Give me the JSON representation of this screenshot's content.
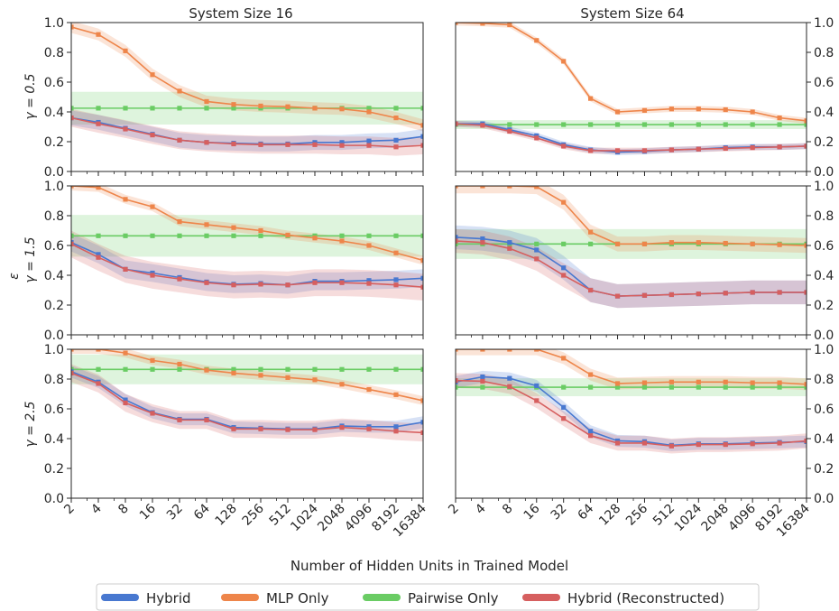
{
  "colors": {
    "Hybrid": "#4878d0",
    "MLP Only": "#ee854a",
    "Pairwise Only": "#6acc64",
    "Hybrid (Reconstructed)": "#d65f5f"
  },
  "figure": {
    "xlabel": "Number of Hidden Units in Trained Model",
    "ylabel_shared": "ε",
    "col_titles": [
      "System Size 16",
      "System Size 64"
    ],
    "row_labels": [
      "γ = 0.5",
      "γ = 1.5",
      "γ = 2.5"
    ],
    "legend": [
      "Hybrid",
      "MLP Only",
      "Pairwise Only",
      "Hybrid (Reconstructed)"
    ]
  },
  "chart_data": {
    "type": "line",
    "x": [
      2,
      4,
      8,
      16,
      32,
      64,
      128,
      256,
      512,
      1024,
      2048,
      4096,
      8192,
      16384
    ],
    "x_tick_labels": [
      "2",
      "4",
      "8",
      "16",
      "32",
      "64",
      "128",
      "256",
      "512",
      "1024",
      "2048",
      "4096",
      "8192",
      "16384"
    ],
    "xscale": "log2",
    "ylim": [
      0,
      1
    ],
    "y_ticks": [
      "0.0",
      "0.2",
      "0.4",
      "0.6",
      "0.8",
      "1.0"
    ],
    "legend_position": "bottom-center",
    "panels": [
      {
        "system_size": 16,
        "gamma": 0.5,
        "series": [
          {
            "name": "Hybrid",
            "values": [
              0.36,
              0.33,
              0.29,
              0.25,
              0.21,
              0.195,
              0.19,
              0.185,
              0.185,
              0.195,
              0.195,
              0.205,
              0.21,
              0.235
            ],
            "band": 0.05
          },
          {
            "name": "MLP Only",
            "values": [
              0.97,
              0.92,
              0.81,
              0.65,
              0.54,
              0.47,
              0.45,
              0.44,
              0.435,
              0.425,
              0.42,
              0.4,
              0.36,
              0.31
            ],
            "band": 0.04
          },
          {
            "name": "Pairwise Only",
            "values": [
              0.425,
              0.425,
              0.425,
              0.425,
              0.425,
              0.425,
              0.425,
              0.425,
              0.425,
              0.425,
              0.425,
              0.425,
              0.425,
              0.425
            ],
            "band": 0.11
          },
          {
            "name": "Hybrid (Reconstructed)",
            "values": [
              0.36,
              0.32,
              0.285,
              0.245,
              0.21,
              0.195,
              0.185,
              0.18,
              0.18,
              0.18,
              0.175,
              0.175,
              0.165,
              0.175
            ],
            "band": 0.06
          }
        ]
      },
      {
        "system_size": 64,
        "gamma": 0.5,
        "series": [
          {
            "name": "Hybrid",
            "values": [
              0.32,
              0.32,
              0.28,
              0.24,
              0.18,
              0.145,
              0.13,
              0.135,
              0.145,
              0.15,
              0.16,
              0.165,
              0.165,
              0.17
            ],
            "band": 0.02
          },
          {
            "name": "MLP Only",
            "values": [
              1.0,
              0.995,
              0.985,
              0.88,
              0.74,
              0.49,
              0.4,
              0.41,
              0.42,
              0.42,
              0.415,
              0.4,
              0.36,
              0.34
            ],
            "band": 0.02
          },
          {
            "name": "Pairwise Only",
            "values": [
              0.315,
              0.315,
              0.315,
              0.315,
              0.315,
              0.315,
              0.315,
              0.315,
              0.315,
              0.315,
              0.315,
              0.315,
              0.315,
              0.315
            ],
            "band": 0.03
          },
          {
            "name": "Hybrid (Reconstructed)",
            "values": [
              0.32,
              0.31,
              0.27,
              0.225,
              0.17,
              0.14,
              0.14,
              0.14,
              0.145,
              0.15,
              0.155,
              0.16,
              0.165,
              0.17
            ],
            "band": 0.02
          }
        ]
      },
      {
        "system_size": 16,
        "gamma": 1.5,
        "series": [
          {
            "name": "Hybrid",
            "values": [
              0.62,
              0.54,
              0.44,
              0.415,
              0.385,
              0.355,
              0.34,
              0.345,
              0.335,
              0.36,
              0.36,
              0.365,
              0.37,
              0.38
            ],
            "band": 0.06
          },
          {
            "name": "MLP Only",
            "values": [
              1.0,
              0.99,
              0.91,
              0.86,
              0.76,
              0.74,
              0.72,
              0.7,
              0.67,
              0.65,
              0.63,
              0.6,
              0.55,
              0.5
            ],
            "band": 0.03
          },
          {
            "name": "Pairwise Only",
            "values": [
              0.665,
              0.665,
              0.665,
              0.665,
              0.665,
              0.665,
              0.665,
              0.665,
              0.665,
              0.665,
              0.665,
              0.665,
              0.665,
              0.665
            ],
            "band": 0.14
          },
          {
            "name": "Hybrid (Reconstructed)",
            "values": [
              0.61,
              0.52,
              0.44,
              0.4,
              0.375,
              0.35,
              0.335,
              0.34,
              0.335,
              0.35,
              0.35,
              0.345,
              0.335,
              0.32
            ],
            "band": 0.09
          }
        ]
      },
      {
        "system_size": 64,
        "gamma": 1.5,
        "series": [
          {
            "name": "Hybrid",
            "values": [
              0.655,
              0.645,
              0.62,
              0.57,
              0.45,
              0.3,
              0.26,
              0.265,
              0.27,
              0.275,
              0.28,
              0.285,
              0.285,
              0.285
            ],
            "band": 0.08
          },
          {
            "name": "MLP Only",
            "values": [
              1.0,
              1.0,
              1.0,
              0.995,
              0.89,
              0.69,
              0.61,
              0.61,
              0.62,
              0.62,
              0.615,
              0.61,
              0.605,
              0.6
            ],
            "band": 0.05
          },
          {
            "name": "Pairwise Only",
            "values": [
              0.61,
              0.61,
              0.61,
              0.61,
              0.61,
              0.61,
              0.61,
              0.61,
              0.61,
              0.61,
              0.61,
              0.61,
              0.61,
              0.61
            ],
            "band": 0.1
          },
          {
            "name": "Hybrid (Reconstructed)",
            "values": [
              0.63,
              0.62,
              0.58,
              0.51,
              0.4,
              0.3,
              0.26,
              0.265,
              0.27,
              0.275,
              0.28,
              0.285,
              0.285,
              0.285
            ],
            "band": 0.08
          }
        ]
      },
      {
        "system_size": 16,
        "gamma": 2.5,
        "series": [
          {
            "name": "Hybrid",
            "values": [
              0.85,
              0.78,
              0.66,
              0.575,
              0.53,
              0.53,
              0.475,
              0.47,
              0.465,
              0.465,
              0.485,
              0.48,
              0.48,
              0.51
            ],
            "band": 0.04
          },
          {
            "name": "MLP Only",
            "values": [
              1.0,
              1.0,
              0.975,
              0.925,
              0.9,
              0.86,
              0.84,
              0.825,
              0.81,
              0.795,
              0.765,
              0.73,
              0.695,
              0.655
            ],
            "band": 0.03
          },
          {
            "name": "Pairwise Only",
            "values": [
              0.865,
              0.865,
              0.865,
              0.865,
              0.865,
              0.865,
              0.865,
              0.865,
              0.865,
              0.865,
              0.865,
              0.865,
              0.865,
              0.865
            ],
            "band": 0.1
          },
          {
            "name": "Hybrid (Reconstructed)",
            "values": [
              0.84,
              0.77,
              0.64,
              0.57,
              0.525,
              0.525,
              0.465,
              0.465,
              0.46,
              0.46,
              0.475,
              0.465,
              0.45,
              0.44
            ],
            "band": 0.06
          }
        ]
      },
      {
        "system_size": 64,
        "gamma": 2.5,
        "series": [
          {
            "name": "Hybrid",
            "values": [
              0.78,
              0.815,
              0.805,
              0.755,
              0.61,
              0.45,
              0.385,
              0.38,
              0.355,
              0.365,
              0.365,
              0.37,
              0.375,
              0.38
            ],
            "band": 0.04
          },
          {
            "name": "MLP Only",
            "values": [
              1.0,
              1.0,
              1.0,
              1.0,
              0.94,
              0.83,
              0.77,
              0.775,
              0.78,
              0.78,
              0.78,
              0.775,
              0.775,
              0.765
            ],
            "band": 0.04
          },
          {
            "name": "Pairwise Only",
            "values": [
              0.745,
              0.745,
              0.745,
              0.745,
              0.745,
              0.745,
              0.745,
              0.745,
              0.745,
              0.745,
              0.745,
              0.745,
              0.745,
              0.745
            ],
            "band": 0.06
          },
          {
            "name": "Hybrid (Reconstructed)",
            "values": [
              0.79,
              0.785,
              0.75,
              0.655,
              0.535,
              0.42,
              0.37,
              0.37,
              0.35,
              0.36,
              0.36,
              0.365,
              0.37,
              0.385
            ],
            "band": 0.05
          }
        ]
      }
    ]
  }
}
